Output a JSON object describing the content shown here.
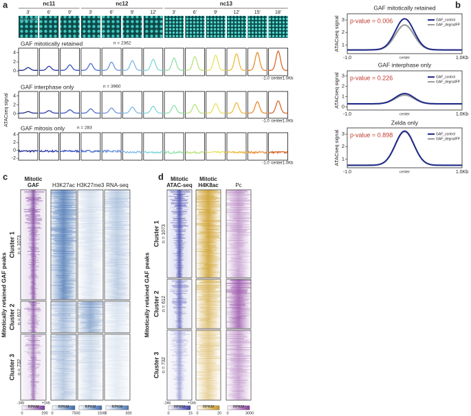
{
  "panels": {
    "a": {
      "label": "a",
      "stages": [
        {
          "name": "nc11",
          "times": [
            "3'",
            "6'",
            "9'"
          ]
        },
        {
          "name": "nc12",
          "times": [
            "3'",
            "6'",
            "9'",
            "12'"
          ]
        },
        {
          "name": "nc13",
          "times": [
            "3'",
            "6'",
            "9'",
            "12'",
            "15'",
            "18'"
          ]
        }
      ],
      "image_label": "H2Av-RFP",
      "y_label": "ATACseq signal",
      "rows": [
        {
          "title": "GAF mitotically retained",
          "n": "n = 2362",
          "yticks": [
            "0",
            "2",
            "4"
          ],
          "xticks": [
            "-1.0",
            "center",
            "1.0Kb"
          ]
        },
        {
          "title": "GAF interphase only",
          "n": "n = 3960",
          "yticks": [
            "0",
            "2",
            "4"
          ],
          "xticks": [
            "-1.0",
            "center",
            "1.0Kb"
          ]
        },
        {
          "title": "GAF mitosis only",
          "n": "n = 283",
          "yticks": [
            "-2",
            "0",
            "2",
            "4"
          ],
          "xticks": [
            "-1.0",
            "center",
            "1.0Kb"
          ]
        }
      ]
    },
    "b": {
      "label": "b",
      "y_label": "ATACseq signal",
      "legend": [
        {
          "name": "GAF_control",
          "color": "#1f2a8a"
        },
        {
          "name": "GAF_degradFP",
          "color": "#9a9a9a"
        }
      ],
      "plots": [
        {
          "title": "GAF mitotically retained",
          "p_value": "p-value = 0.006",
          "yticks": [
            "1",
            "2",
            "3"
          ],
          "xticks": [
            "-1.0",
            "center",
            "1.0Kb"
          ]
        },
        {
          "title": "GAF interphase only",
          "p_value": "p-value = 0.226",
          "yticks": [
            "0",
            "1",
            "2",
            "3"
          ],
          "xticks": [
            "-1.0",
            "center",
            "1.0Kb"
          ]
        },
        {
          "title": "Zelda only",
          "p_value": "p-value = 0.898",
          "yticks": [
            "1",
            "2",
            "3"
          ],
          "xticks": [
            "-1.0",
            "center",
            "1.0Kb"
          ]
        }
      ]
    },
    "c": {
      "label": "c",
      "side_label": "Mitotically retained GAF peaks",
      "xticks": [
        "-1kb",
        "+1kb"
      ],
      "clusters": [
        {
          "name": "Cluster 1",
          "n": "n = 1073"
        },
        {
          "name": "Cluster 2",
          "n": "n = 612"
        },
        {
          "name": "Cluster 3",
          "n": "n = 732"
        }
      ],
      "columns": [
        {
          "title": [
            "Mitotic",
            "GAF"
          ],
          "color": "#7a3a9a",
          "colorbar": {
            "label": "RPKM",
            "ticks": [
              "0",
              "200"
            ]
          }
        },
        {
          "title": [
            "H3K27ac"
          ],
          "color": "#3a6aae",
          "colorbar": {
            "label": "RPKM",
            "ticks": [
              "0",
              "750"
            ]
          }
        },
        {
          "title": [
            "H3K27me3"
          ],
          "color": "#3a6aae",
          "colorbar": {
            "label": "RPKM",
            "ticks": [
              "0",
              "1500"
            ]
          }
        },
        {
          "title": [
            "RNA-seq"
          ],
          "color": "#4a78b4",
          "colorbar": {
            "label": "RPKM",
            "ticks": [
              "0",
              "300"
            ]
          }
        }
      ]
    },
    "d": {
      "label": "d",
      "side_label": "Mitotically retained GAF peaks",
      "xticks": [
        "-1kb",
        "+1kb"
      ],
      "clusters": [
        {
          "name": "Cluster 1",
          "n": "n = 1073"
        },
        {
          "name": "Cluster 2",
          "n": "n = 612"
        },
        {
          "name": "Cluster 3",
          "n": "n = 732"
        }
      ],
      "columns": [
        {
          "title": [
            "Mitotic",
            "ATAC-seq"
          ],
          "color": "#3a3ea8",
          "colorbar": {
            "label": "RPKM",
            "ticks": [
              "0",
              "15"
            ]
          }
        },
        {
          "title": [
            "Mitotic",
            "H4K8ac"
          ],
          "color": "#c9971c",
          "colorbar": {
            "label": "RPKM",
            "ticks": [
              "0",
              "20"
            ]
          }
        },
        {
          "title": [
            "Pc"
          ],
          "color": "#8a3a9c",
          "colorbar": {
            "label": "RPKM",
            "ticks": [
              "0",
              "3000"
            ]
          }
        }
      ]
    }
  }
}
